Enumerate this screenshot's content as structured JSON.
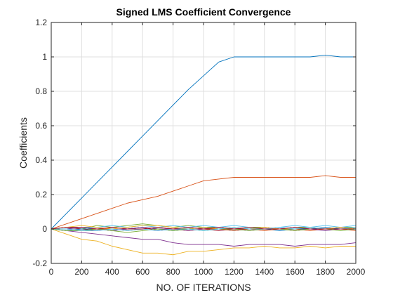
{
  "chart_data": {
    "type": "line",
    "title": "Signed LMS Coefficient Convergence",
    "xlabel": "NO. OF ITERATIONS",
    "ylabel": "Coefficients",
    "xlim": [
      0,
      2000
    ],
    "ylim": [
      -0.2,
      1.2
    ],
    "xticks": [
      0,
      200,
      400,
      600,
      800,
      1000,
      1200,
      1400,
      1600,
      1800,
      2000
    ],
    "yticks": [
      -0.2,
      0,
      0.2,
      0.4,
      0.6,
      0.8,
      1,
      1.2
    ],
    "grid": true,
    "series": [
      {
        "color": "#0072BD",
        "x": [
          0,
          100,
          200,
          300,
          400,
          500,
          600,
          700,
          800,
          900,
          1000,
          1100,
          1200,
          1300,
          1400,
          1500,
          1600,
          1700,
          1800,
          1900,
          2000
        ],
        "values": [
          0,
          0.09,
          0.18,
          0.27,
          0.36,
          0.45,
          0.54,
          0.63,
          0.72,
          0.81,
          0.89,
          0.97,
          1.0,
          1.0,
          1.0,
          1.0,
          1.0,
          1.0,
          1.01,
          1.0,
          1.0
        ]
      },
      {
        "color": "#D95319",
        "x": [
          0,
          100,
          200,
          300,
          400,
          500,
          600,
          700,
          800,
          900,
          1000,
          1100,
          1200,
          1300,
          1400,
          1500,
          1600,
          1700,
          1800,
          1900,
          2000
        ],
        "values": [
          0,
          0.03,
          0.06,
          0.09,
          0.12,
          0.15,
          0.17,
          0.19,
          0.22,
          0.25,
          0.28,
          0.29,
          0.3,
          0.3,
          0.3,
          0.3,
          0.3,
          0.3,
          0.31,
          0.3,
          0.3
        ]
      },
      {
        "color": "#EDB120",
        "x": [
          0,
          100,
          200,
          300,
          400,
          500,
          600,
          700,
          800,
          900,
          1000,
          1100,
          1200,
          1300,
          1400,
          1500,
          1600,
          1700,
          1800,
          1900,
          2000
        ],
        "values": [
          0,
          -0.03,
          -0.06,
          -0.07,
          -0.1,
          -0.12,
          -0.14,
          -0.14,
          -0.15,
          -0.13,
          -0.13,
          -0.12,
          -0.11,
          -0.11,
          -0.1,
          -0.11,
          -0.11,
          -0.1,
          -0.11,
          -0.1,
          -0.1
        ]
      },
      {
        "color": "#7E2F8E",
        "x": [
          0,
          100,
          200,
          300,
          400,
          500,
          600,
          700,
          800,
          900,
          1000,
          1100,
          1200,
          1300,
          1400,
          1500,
          1600,
          1700,
          1800,
          1900,
          2000
        ],
        "values": [
          0,
          -0.01,
          -0.02,
          -0.03,
          -0.04,
          -0.05,
          -0.06,
          -0.06,
          -0.08,
          -0.09,
          -0.09,
          -0.09,
          -0.1,
          -0.09,
          -0.09,
          -0.09,
          -0.1,
          -0.09,
          -0.09,
          -0.09,
          -0.08
        ]
      },
      {
        "color": "#77AC30",
        "x": [
          0,
          100,
          200,
          300,
          400,
          500,
          600,
          700,
          800,
          900,
          1000,
          1100,
          1200,
          1300,
          1400,
          1500,
          1600,
          1700,
          1800,
          1900,
          2000
        ],
        "values": [
          0,
          0.01,
          0.0,
          0.02,
          0.01,
          0.02,
          0.03,
          0.02,
          0.01,
          0.02,
          0.01,
          0.01,
          0.0,
          0.01,
          0.01,
          0.0,
          0.01,
          0.01,
          0.0,
          0.01,
          0.01
        ]
      },
      {
        "color": "#4DBEEE",
        "x": [
          0,
          100,
          200,
          300,
          400,
          500,
          600,
          700,
          800,
          900,
          1000,
          1100,
          1200,
          1300,
          1400,
          1500,
          1600,
          1700,
          1800,
          1900,
          2000
        ],
        "values": [
          0,
          0.0,
          0.01,
          0.01,
          0.02,
          0.01,
          0.02,
          0.01,
          0.02,
          0.01,
          0.02,
          0.01,
          0.02,
          0.01,
          0.0,
          0.01,
          0.02,
          0.01,
          0.02,
          0.01,
          0.02
        ]
      },
      {
        "color": "#A2142F",
        "x": [
          0,
          100,
          200,
          300,
          400,
          500,
          600,
          700,
          800,
          900,
          1000,
          1100,
          1200,
          1300,
          1400,
          1500,
          1600,
          1700,
          1800,
          1900,
          2000
        ],
        "values": [
          0,
          0.01,
          0.0,
          -0.01,
          0.01,
          0.0,
          0.01,
          -0.01,
          0.0,
          0.01,
          0.0,
          -0.01,
          0.0,
          0.0,
          0.01,
          0.0,
          -0.01,
          0.0,
          0.0,
          0.01,
          0.0
        ]
      },
      {
        "color": "#0072BD",
        "x": [
          0,
          100,
          200,
          300,
          400,
          500,
          600,
          700,
          800,
          900,
          1000,
          1100,
          1200,
          1300,
          1400,
          1500,
          1600,
          1700,
          1800,
          1900,
          2000
        ],
        "values": [
          0,
          -0.01,
          0.0,
          0.0,
          -0.01,
          0.0,
          0.01,
          0.0,
          -0.01,
          0.0,
          0.01,
          0.0,
          -0.01,
          0.0,
          0.0,
          -0.01,
          0.0,
          0.0,
          0.01,
          0.0,
          0.0
        ]
      },
      {
        "color": "#D95319",
        "x": [
          0,
          100,
          200,
          300,
          400,
          500,
          600,
          700,
          800,
          900,
          1000,
          1100,
          1200,
          1300,
          1400,
          1500,
          1600,
          1700,
          1800,
          1900,
          2000
        ],
        "values": [
          0,
          0.0,
          -0.01,
          0.0,
          0.0,
          -0.01,
          0.0,
          0.01,
          0.0,
          -0.01,
          0.0,
          0.0,
          -0.01,
          0.0,
          -0.01,
          0.0,
          0.0,
          -0.01,
          0.0,
          0.0,
          -0.01
        ]
      },
      {
        "color": "#EDB120",
        "x": [
          0,
          100,
          200,
          300,
          400,
          500,
          600,
          700,
          800,
          900,
          1000,
          1100,
          1200,
          1300,
          1400,
          1500,
          1600,
          1700,
          1800,
          1900,
          2000
        ],
        "values": [
          0,
          0.01,
          0.02,
          0.01,
          0.0,
          0.01,
          0.02,
          0.02,
          0.01,
          0.0,
          0.01,
          0.0,
          0.01,
          0.0,
          0.01,
          0.0,
          0.0,
          0.01,
          0.0,
          0.01,
          0.0
        ]
      },
      {
        "color": "#7E2F8E",
        "x": [
          0,
          100,
          200,
          300,
          400,
          500,
          600,
          700,
          800,
          900,
          1000,
          1100,
          1200,
          1300,
          1400,
          1500,
          1600,
          1700,
          1800,
          1900,
          2000
        ],
        "values": [
          0,
          0.0,
          0.01,
          0.0,
          -0.01,
          0.0,
          0.01,
          0.0,
          0.0,
          -0.01,
          0.0,
          0.01,
          0.0,
          -0.01,
          0.0,
          0.0,
          0.01,
          0.0,
          -0.01,
          0.0,
          0.0
        ]
      },
      {
        "color": "#77AC30",
        "x": [
          0,
          100,
          200,
          300,
          400,
          500,
          600,
          700,
          800,
          900,
          1000,
          1100,
          1200,
          1300,
          1400,
          1500,
          1600,
          1700,
          1800,
          1900,
          2000
        ],
        "values": [
          0,
          -0.01,
          -0.01,
          0.0,
          -0.01,
          -0.02,
          -0.01,
          0.0,
          -0.01,
          0.0,
          -0.01,
          0.0,
          0.0,
          -0.01,
          0.0,
          0.0,
          -0.01,
          0.0,
          0.0,
          -0.01,
          0.0
        ]
      },
      {
        "color": "#4DBEEE",
        "x": [
          0,
          100,
          200,
          300,
          400,
          500,
          600,
          700,
          800,
          900,
          1000,
          1100,
          1200,
          1300,
          1400,
          1500,
          1600,
          1700,
          1800,
          1900,
          2000
        ],
        "values": [
          0,
          0.0,
          -0.01,
          -0.01,
          0.0,
          -0.01,
          0.0,
          -0.01,
          0.0,
          0.0,
          -0.01,
          0.0,
          0.01,
          0.0,
          0.0,
          0.01,
          0.0,
          0.01,
          0.0,
          0.0,
          0.01
        ]
      },
      {
        "color": "#A2142F",
        "x": [
          0,
          100,
          200,
          300,
          400,
          500,
          600,
          700,
          800,
          900,
          1000,
          1100,
          1200,
          1300,
          1400,
          1500,
          1600,
          1700,
          1800,
          1900,
          2000
        ],
        "values": [
          0,
          0.01,
          0.01,
          0.0,
          0.01,
          0.0,
          0.0,
          0.01,
          0.0,
          0.01,
          0.0,
          0.01,
          0.0,
          0.01,
          0.0,
          0.0,
          0.01,
          0.0,
          0.0,
          0.0,
          0.0
        ]
      }
    ]
  }
}
